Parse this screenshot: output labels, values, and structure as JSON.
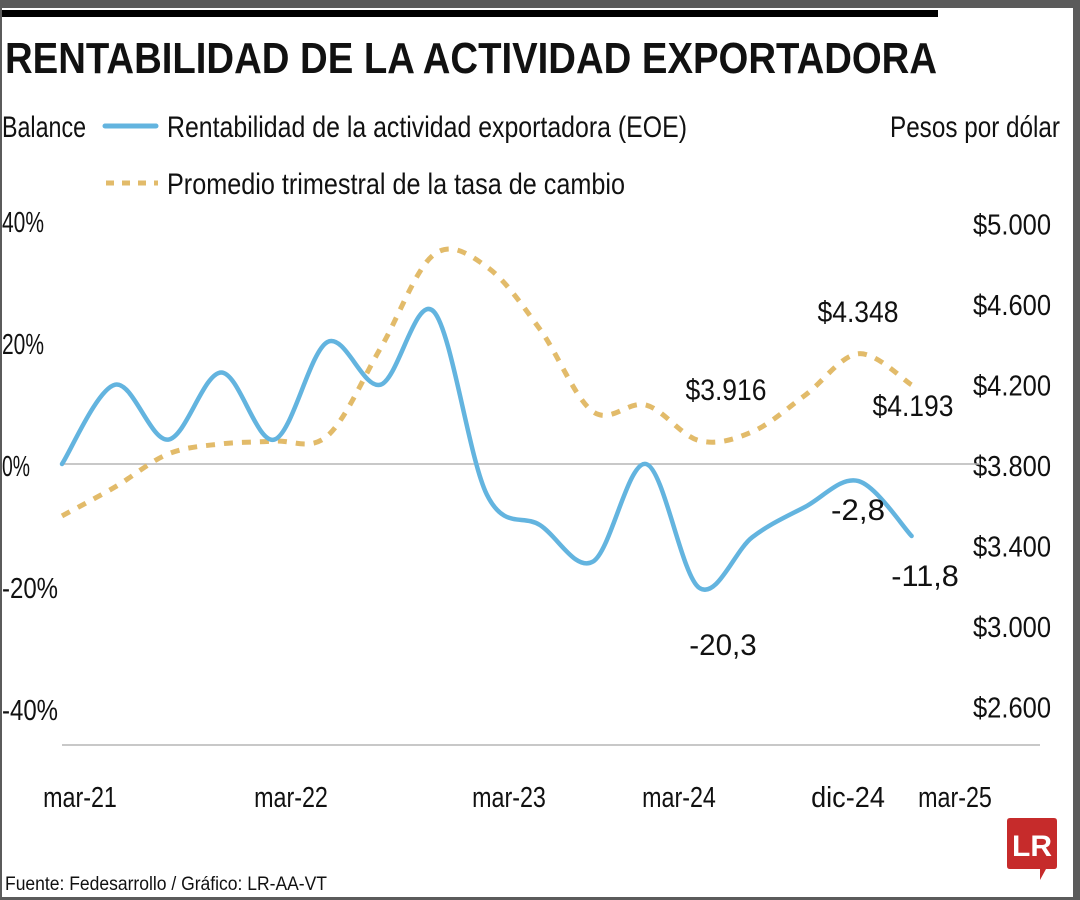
{
  "chart_data": {
    "type": "line",
    "title": "RENTABILIDAD DE LA ACTIVIDAD EXPORTADORA",
    "ylabel_left": "Balance",
    "ylabel_right": "Pesos por dólar",
    "left_ticks": [
      "40%",
      "20%",
      "0%",
      "-20%",
      "-40%"
    ],
    "right_ticks": [
      "$5.000",
      "$4.600",
      "$4.200",
      "$3.800",
      "$3.400",
      "$3.000",
      "$2.600"
    ],
    "ylim_left": [
      -40,
      40
    ],
    "ylim_right": [
      2600,
      5000
    ],
    "x_tick_labels": [
      "mar-21",
      "mar-22",
      "mar-23",
      "mar-24",
      "dic-24",
      "mar-25"
    ],
    "x_range": [
      "mar-21",
      "mar-25"
    ],
    "frequency": "quarterly",
    "grid": false,
    "legend_placement": "top",
    "series": [
      {
        "name": "Rentabilidad de la actividad exportadora (EOE)",
        "axis": "left",
        "color": "#63b4df",
        "style": "solid",
        "values": [
          0,
          13,
          4,
          15,
          4,
          20,
          13,
          25,
          -5,
          -10,
          -16,
          0,
          -20.3,
          -12,
          -7,
          -2.8,
          -11.8
        ]
      },
      {
        "name": "Promedio trimestral de la tasa de cambio",
        "axis": "right",
        "color": "#e2bb6a",
        "style": "dashed",
        "values": [
          3542,
          3686,
          3850,
          3900,
          3914,
          3940,
          4376,
          4840,
          4780,
          4470,
          4060,
          4093,
          3916,
          3960,
          4143,
          4348,
          4193
        ]
      }
    ],
    "annotations": [
      {
        "text": "$4.348",
        "series": 1,
        "index": 15
      },
      {
        "text": "$3.916",
        "series": 1,
        "index": 12
      },
      {
        "text": "$4.193",
        "series": 1,
        "index": 16
      },
      {
        "text": "-2,8",
        "series": 0,
        "index": 15
      },
      {
        "text": "-11,8",
        "series": 0,
        "index": 16
      },
      {
        "text": "-20,3",
        "series": 0,
        "index": 12
      }
    ]
  },
  "footer": {
    "source": "Fuente:  Fedesarrollo  / Gráfico: LR-AA-VT",
    "logo": "LR"
  }
}
